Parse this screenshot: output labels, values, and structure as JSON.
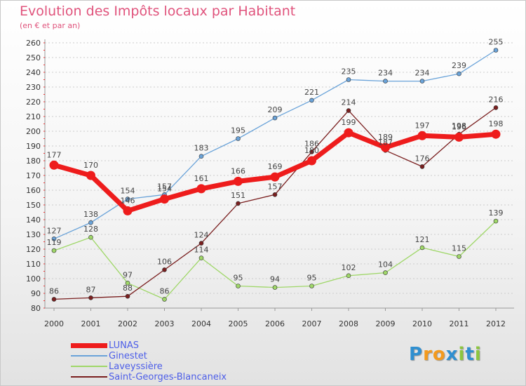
{
  "header": {
    "title": "Evolution des Impôts locaux par Habitant",
    "subtitle": "(en € et par an)"
  },
  "logo": {
    "letters": [
      "P",
      "r",
      "o",
      "x",
      "i",
      "t",
      "i"
    ],
    "colors": [
      "#2f8fd0",
      "#f39a1d",
      "#f39a1d",
      "#2f8fd0",
      "#8cc63e",
      "#2f8fd0",
      "#8cc63e"
    ]
  },
  "colors": {
    "title": "#e0537c",
    "legend_text": "#4d5ee8",
    "grid": "#cccccc"
  },
  "chart_data": {
    "type": "line",
    "x": [
      "2000",
      "2001",
      "2002",
      "2003",
      "2004",
      "2005",
      "2006",
      "2007",
      "2008",
      "2009",
      "2010",
      "2011",
      "2012"
    ],
    "ylim": [
      80,
      260
    ],
    "yticks": [
      80,
      90,
      100,
      110,
      120,
      130,
      140,
      150,
      160,
      170,
      180,
      190,
      200,
      210,
      220,
      230,
      240,
      250,
      260
    ],
    "grid": "horizontal",
    "legend_position": "bottom-left",
    "series": [
      {
        "name": "Ginestet",
        "color": "#6aa3d9",
        "values": [
          127,
          138,
          154,
          157,
          183,
          195,
          209,
          221,
          235,
          234,
          234,
          239,
          255
        ]
      },
      {
        "name": "Laveyssière",
        "color": "#9fd768",
        "values": [
          119,
          128,
          97,
          86,
          114,
          95,
          94,
          95,
          102,
          104,
          121,
          115,
          139
        ]
      },
      {
        "name": "Saint-Georges-Blancaneix",
        "color": "#7a1f1f",
        "values": [
          86,
          87,
          88,
          106,
          124,
          151,
          157,
          186,
          214,
          187,
          176,
          198,
          216
        ]
      },
      {
        "name": "LUNAS",
        "color": "#ee1c1c",
        "values": [
          177,
          170,
          146,
          154,
          161,
          166,
          169,
          180,
          199,
          189,
          197,
          196,
          198
        ]
      }
    ],
    "legend_order": [
      "LUNAS",
      "Ginestet",
      "Laveyssière",
      "Saint-Georges-Blancaneix"
    ]
  }
}
